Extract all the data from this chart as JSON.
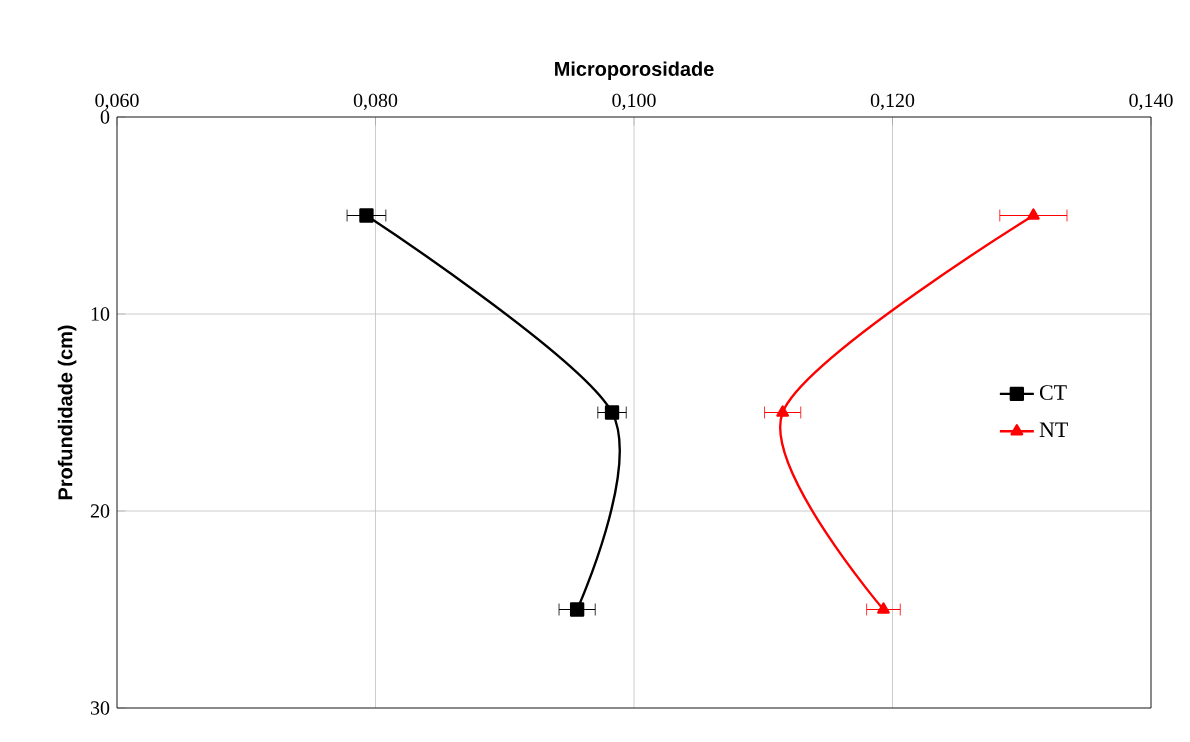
{
  "chart_data": {
    "type": "line",
    "xlabel": "Microporosidade",
    "ylabel": "Profundidade (cm)",
    "xlim": [
      0.06,
      0.14
    ],
    "xticks": [
      {
        "value": 0.06,
        "label": "0,060"
      },
      {
        "value": 0.08,
        "label": "0,080"
      },
      {
        "value": 0.1,
        "label": "0,100"
      },
      {
        "value": 0.12,
        "label": "0,120"
      },
      {
        "value": 0.14,
        "label": "0,140"
      }
    ],
    "ylim": [
      30,
      0
    ],
    "yticks": [
      0,
      10,
      20,
      30
    ],
    "grid": true,
    "legend": "right",
    "series": [
      {
        "name": "CT",
        "color": "#000000",
        "marker": "square",
        "x": [
          0.0793,
          0.0983,
          0.0956
        ],
        "values": [
          5,
          15,
          25
        ],
        "xerrors": [
          0.0015,
          0.0011,
          0.0014
        ]
      },
      {
        "name": "NT",
        "color": "#ff0000",
        "marker": "triangle",
        "x": [
          0.1309,
          0.1115,
          0.1193
        ],
        "values": [
          5,
          15,
          25
        ],
        "xerrors": [
          0.0026,
          0.0014,
          0.0013
        ]
      }
    ]
  }
}
